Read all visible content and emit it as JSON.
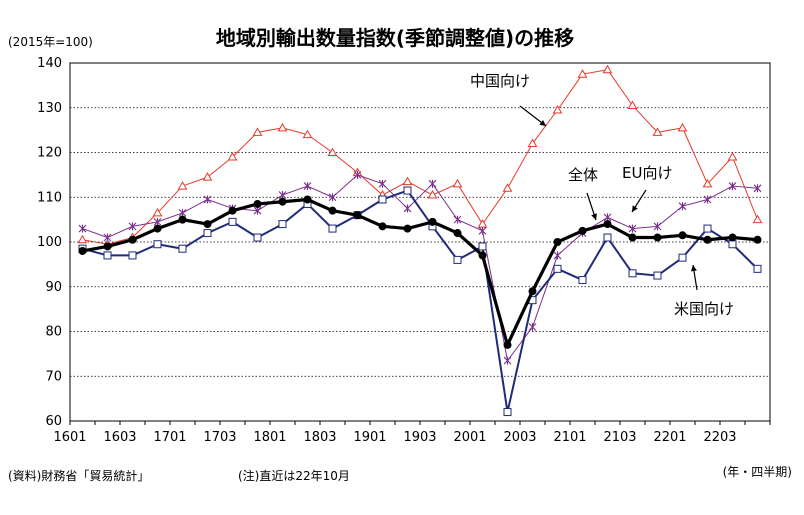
{
  "chart_data": {
    "type": "line",
    "title": "地域別輸出数量指数(季節調整値)の推移",
    "y_unit": "(2015年=100)",
    "x_unit": "(年・四半期)",
    "source": "(資料)財務省「貿易統計」",
    "note": "(注)直近は22年10月",
    "ylim": [
      60,
      140
    ],
    "yticks": [
      60,
      70,
      80,
      90,
      100,
      110,
      120,
      130,
      140
    ],
    "grid": true,
    "x": [
      "1601",
      "1602",
      "1603",
      "1604",
      "1701",
      "1702",
      "1703",
      "1704",
      "1801",
      "1802",
      "1803",
      "1804",
      "1901",
      "1902",
      "1903",
      "1904",
      "2001",
      "2002",
      "2003",
      "2004",
      "2101",
      "2102",
      "2103",
      "2104",
      "2201",
      "2202",
      "2203",
      "2204"
    ],
    "xtick_labels": [
      "1601",
      "1603",
      "1701",
      "1703",
      "1801",
      "1803",
      "1901",
      "1903",
      "2001",
      "2003",
      "2101",
      "2103",
      "2201",
      "2203"
    ],
    "series": [
      {
        "name": "中国向け",
        "color": "#e8382a",
        "marker": "triangle",
        "values": [
          100.5,
          99.5,
          101,
          106.5,
          112.5,
          114.5,
          119,
          124.5,
          125.5,
          124,
          120,
          115.5,
          110.5,
          113.5,
          110.5,
          113,
          104,
          112,
          122,
          129.5,
          137.5,
          138.5,
          130.5,
          124.5,
          125.5,
          113,
          119,
          105
        ]
      },
      {
        "name": "EU向け",
        "color": "#7b2f8e",
        "marker": "x",
        "values": [
          103,
          101,
          103.5,
          104.5,
          106.5,
          109.5,
          107.5,
          107,
          110.5,
          112.5,
          110,
          115,
          113,
          107.5,
          113,
          105,
          102.5,
          73.5,
          81,
          97,
          102,
          105.5,
          103,
          103.5,
          108,
          109.5,
          112.5,
          112
        ]
      },
      {
        "name": "米国向け",
        "color": "#1f2a7a",
        "marker": "square",
        "values": [
          98.5,
          97,
          97,
          99.5,
          98.5,
          102,
          104.5,
          101,
          104,
          108.5,
          103,
          106,
          109.5,
          111.5,
          103.5,
          96,
          99,
          62,
          87,
          94,
          91.5,
          101,
          93,
          92.5,
          96.5,
          103,
          99.5,
          94
        ]
      },
      {
        "name": "全体",
        "color": "#000000",
        "marker": "circle",
        "values": [
          98,
          99,
          100.5,
          103,
          105,
          104,
          107,
          108.5,
          109,
          109.5,
          107,
          106,
          103.5,
          103,
          104.5,
          102,
          97,
          77,
          89,
          100,
          102.5,
          104,
          101,
          101,
          101.5,
          100.5,
          101,
          100.5
        ]
      }
    ],
    "annotations": [
      "中国向け",
      "全体",
      "EU向け",
      "米国向け"
    ]
  }
}
